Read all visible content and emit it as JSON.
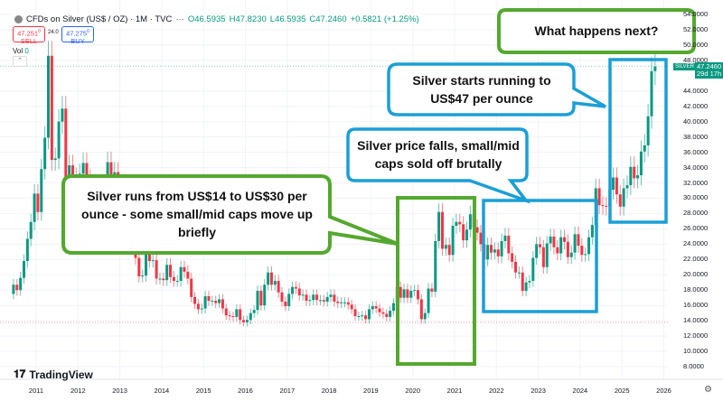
{
  "header": {
    "title": "CFDs on Silver (US$ / OZ) · 1M · TVC",
    "open": "O46.5935",
    "high": "H47.8230",
    "low": "L46.5935",
    "close": "C47.2460",
    "change": "+0.5821 (+1.25%)"
  },
  "trade": {
    "sell_price": "47.251",
    "sell_sup": "0",
    "sell_label": "SELL",
    "spread": "24.0",
    "buy_price": "47.275",
    "buy_sup": "0",
    "buy_label": "BUY"
  },
  "volume": {
    "label": "Vol",
    "value": "0"
  },
  "price_tag": {
    "symbol": "SILVER",
    "price": "47.2460",
    "countdown": "29d 17h"
  },
  "logo": "TradingView",
  "colors": {
    "up": "#089981",
    "down": "#f23645",
    "green_box": "#55a82f",
    "blue_box": "#1a9fd6"
  },
  "annotations": {
    "a1": "Silver runs from US$14 to US$30 per ounce - some small/mid caps move up briefly",
    "a2": "Silver price falls, small/mid caps sold off brutally",
    "a3": "Silver starts running to US$47 per ounce",
    "a4": "What happens next?"
  },
  "chart_data": {
    "type": "candlestick",
    "interval": "1M",
    "y_ticks": [
      "54.0000",
      "52.0000",
      "50.0000",
      "48.0000",
      "44.0000",
      "42.0000",
      "40.0000",
      "38.0000",
      "36.0000",
      "34.0000",
      "32.0000",
      "30.0000",
      "28.0000",
      "26.0000",
      "24.0000",
      "22.0000",
      "20.0000",
      "18.0000",
      "16.0000",
      "14.0000",
      "12.0000",
      "10.0000",
      "8.0000"
    ],
    "x_ticks": [
      "2011",
      "2012",
      "2013",
      "2014",
      "2015",
      "2016",
      "2017",
      "2018",
      "2019",
      "2020",
      "2021",
      "2022",
      "2023",
      "2024",
      "2025",
      "2026"
    ],
    "ylim": [
      8,
      54
    ],
    "start": "2010-06",
    "first_open": 17.5,
    "monthly_close": [
      18.7,
      18.0,
      19.6,
      21.8,
      24.7,
      26.9,
      30.6,
      28.2,
      33.8,
      37.9,
      48.6,
      35.0,
      35.2,
      40.0,
      41.7,
      30.0,
      34.3,
      32.7,
      27.9,
      33.2,
      34.6,
      32.5,
      31.1,
      28.0,
      27.5,
      28.0,
      30.9,
      34.7,
      32.3,
      33.4,
      30.0,
      31.9,
      29.4,
      28.4,
      24.0,
      22.2,
      19.8,
      19.9,
      23.8,
      21.8,
      21.9,
      19.5,
      19.5,
      19.3,
      21.3,
      19.7,
      19.2,
      19.2,
      21.0,
      20.4,
      19.5,
      17.1,
      16.2,
      15.5,
      15.6,
      17.2,
      16.6,
      16.6,
      16.3,
      16.8,
      15.6,
      14.7,
      14.6,
      14.5,
      15.5,
      14.1,
      13.8,
      14.1,
      15.0,
      15.4,
      17.9,
      16.0,
      18.7,
      20.3,
      18.7,
      19.2,
      17.7,
      16.5,
      15.9,
      17.5,
      18.4,
      18.2,
      17.3,
      17.4,
      16.6,
      16.7,
      17.4,
      16.7,
      16.7,
      16.5,
      17.1,
      17.4,
      16.5,
      16.3,
      16.4,
      16.4,
      16.1,
      15.5,
      14.6,
      14.6,
      14.7,
      14.2,
      15.5,
      15.9,
      15.6,
      15.1,
      14.9,
      14.5,
      15.3,
      16.3,
      18.4,
      17.0,
      18.1,
      17.0,
      17.9,
      18.0,
      16.8,
      14.2,
      15.0,
      18.2,
      17.8,
      24.4,
      28.2,
      23.4,
      23.9,
      22.6,
      26.4,
      26.9,
      26.6,
      24.5,
      25.9,
      27.9,
      26.2,
      25.5,
      24.0,
      22.0,
      23.9,
      22.9,
      23.3,
      22.4,
      24.4,
      25.1,
      22.8,
      21.7,
      20.3,
      20.3,
      17.9,
      19.0,
      19.2,
      22.2,
      24.0,
      23.6,
      21.0,
      24.1,
      25.0,
      23.6,
      22.8,
      24.9,
      24.3,
      22.3,
      22.9,
      25.3,
      23.8,
      22.6,
      22.7,
      24.9,
      26.5,
      31.3,
      29.1,
      29.0,
      28.9,
      31.1,
      32.7,
      30.5,
      28.9,
      31.3,
      31.7,
      34.1,
      32.6,
      33.0,
      36.1,
      36.9,
      40.7,
      46.6,
      47.2
    ],
    "last_price": 47.246
  }
}
